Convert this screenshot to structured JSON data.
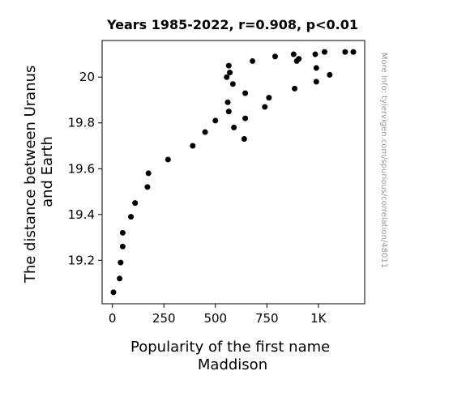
{
  "chart_data": {
    "type": "scatter",
    "title": "Years 1985-2022, r=0.908, p<0.01",
    "xlabel_lines": [
      "Popularity of the first name",
      "Maddison"
    ],
    "ylabel_lines": [
      "The distance between Uranus",
      "and Earth"
    ],
    "xlim": [
      -50,
      1225
    ],
    "ylim": [
      19.01,
      20.16
    ],
    "xticks": [
      {
        "value": 0,
        "label": "0"
      },
      {
        "value": 250,
        "label": "250"
      },
      {
        "value": 500,
        "label": "500"
      },
      {
        "value": 750,
        "label": "750"
      },
      {
        "value": 1000,
        "label": "1K"
      }
    ],
    "yticks": [
      {
        "value": 19.2,
        "label": "19.2"
      },
      {
        "value": 19.4,
        "label": "19.4"
      },
      {
        "value": 19.6,
        "label": "19.6"
      },
      {
        "value": 19.8,
        "label": "19.8"
      },
      {
        "value": 20.0,
        "label": "20"
      }
    ],
    "grid": false,
    "marker_color": "#000000",
    "watermark": "More info: tylervigen.com/spurious/correlation/48011",
    "points": [
      {
        "x": 5,
        "y": 19.06
      },
      {
        "x": 35,
        "y": 19.12
      },
      {
        "x": 40,
        "y": 19.19
      },
      {
        "x": 50,
        "y": 19.26
      },
      {
        "x": 50,
        "y": 19.32
      },
      {
        "x": 90,
        "y": 19.39
      },
      {
        "x": 110,
        "y": 19.45
      },
      {
        "x": 170,
        "y": 19.52
      },
      {
        "x": 175,
        "y": 19.58
      },
      {
        "x": 270,
        "y": 19.64
      },
      {
        "x": 390,
        "y": 19.7
      },
      {
        "x": 450,
        "y": 19.76
      },
      {
        "x": 500,
        "y": 19.81
      },
      {
        "x": 555,
        "y": 20.0
      },
      {
        "x": 560,
        "y": 19.89
      },
      {
        "x": 565,
        "y": 19.85
      },
      {
        "x": 565,
        "y": 20.05
      },
      {
        "x": 570,
        "y": 20.02
      },
      {
        "x": 585,
        "y": 19.97
      },
      {
        "x": 590,
        "y": 19.78
      },
      {
        "x": 640,
        "y": 19.73
      },
      {
        "x": 645,
        "y": 19.82
      },
      {
        "x": 645,
        "y": 19.93
      },
      {
        "x": 680,
        "y": 20.07
      },
      {
        "x": 740,
        "y": 19.87
      },
      {
        "x": 760,
        "y": 19.91
      },
      {
        "x": 790,
        "y": 20.09
      },
      {
        "x": 880,
        "y": 20.1
      },
      {
        "x": 885,
        "y": 19.95
      },
      {
        "x": 895,
        "y": 20.07
      },
      {
        "x": 905,
        "y": 20.08
      },
      {
        "x": 985,
        "y": 20.1
      },
      {
        "x": 990,
        "y": 20.04
      },
      {
        "x": 990,
        "y": 19.98
      },
      {
        "x": 1030,
        "y": 20.11
      },
      {
        "x": 1055,
        "y": 20.01
      },
      {
        "x": 1130,
        "y": 20.11
      },
      {
        "x": 1170,
        "y": 20.11
      }
    ]
  }
}
